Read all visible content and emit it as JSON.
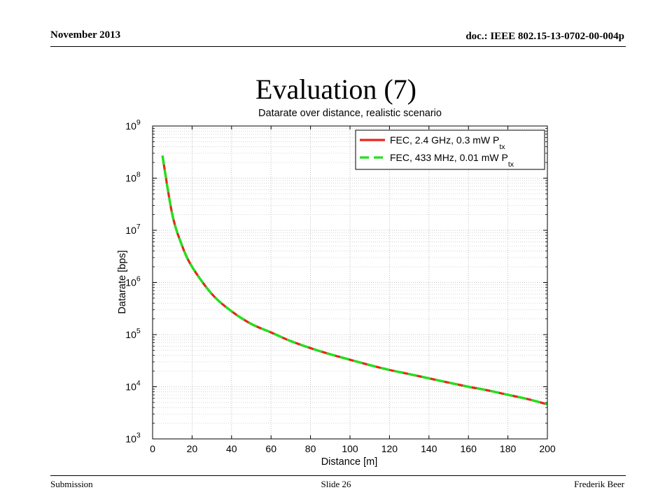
{
  "slide": {
    "header_date": "November 2013",
    "header_doc": "doc.: IEEE 802.15-13-0702-00-004p",
    "title": "Evaluation (7)",
    "footer_left": "Submission",
    "footer_center": "Slide 26",
    "footer_right": "Frederik Beer"
  },
  "chart_data": {
    "type": "line",
    "title": "Datarate over distance, realistic scenario",
    "xlabel": "Distance [m]",
    "ylabel": "Datarate [bps]",
    "xlim": [
      0,
      200
    ],
    "ylim": [
      1000,
      1000000000
    ],
    "yscale": "log",
    "xticks": [
      0,
      20,
      40,
      60,
      80,
      100,
      120,
      140,
      160,
      180,
      200
    ],
    "ytick_labels": [
      {
        "base": "10",
        "exp": "3"
      },
      {
        "base": "10",
        "exp": "4"
      },
      {
        "base": "10",
        "exp": "5"
      },
      {
        "base": "10",
        "exp": "6"
      },
      {
        "base": "10",
        "exp": "7"
      },
      {
        "base": "10",
        "exp": "8"
      },
      {
        "base": "10",
        "exp": "9"
      }
    ],
    "grid": true,
    "legend_position": "top-right",
    "series": [
      {
        "name": "FEC, 2.4 GHz, 0.3 mW P",
        "name_sub": "tx",
        "color": "#e8261c",
        "style": "solid",
        "x": [
          5,
          10,
          15,
          20,
          30,
          40,
          50,
          60,
          70,
          80,
          90,
          100,
          110,
          120,
          130,
          140,
          150,
          160,
          170,
          180,
          190,
          200
        ],
        "y": [
          270000000,
          20000000,
          5000000,
          2000000,
          600000,
          280000,
          160000,
          110000,
          75000,
          55000,
          42000,
          33000,
          26000,
          21000,
          17500,
          14500,
          12000,
          10000,
          8500,
          7000,
          5800,
          4600
        ]
      },
      {
        "name": "FEC, 433 MHz, 0.01 mW P",
        "name_sub": "tx",
        "color": "#22e01c",
        "style": "dashed",
        "x": [
          5,
          10,
          15,
          20,
          30,
          40,
          50,
          60,
          70,
          80,
          90,
          100,
          110,
          120,
          130,
          140,
          150,
          160,
          170,
          180,
          190,
          200
        ],
        "y": [
          270000000,
          20000000,
          5000000,
          2000000,
          600000,
          280000,
          160000,
          110000,
          75000,
          55000,
          42000,
          33000,
          26000,
          21000,
          17500,
          14500,
          12000,
          10000,
          8500,
          7000,
          5800,
          4600
        ]
      }
    ]
  }
}
